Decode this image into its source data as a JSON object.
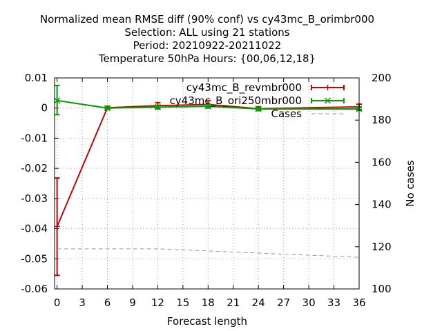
{
  "chart_data": {
    "type": "line",
    "title_lines": [
      "Normalized mean RMSE diff (90% conf) vs cy43mc_B_orimbr000",
      "Selection: ALL using    21 stations",
      "Period: 20210922-20211022",
      "Temperature 50hPa   Hours: {00,06,12,18}"
    ],
    "xlabel": "Forecast length",
    "ylabel": "",
    "y2label": "No cases",
    "x_ticks": [
      "0",
      "3",
      "6",
      "9",
      "12",
      "15",
      "18",
      "21",
      "24",
      "27",
      "30",
      "33",
      "36"
    ],
    "y_ticks": [
      "0.01",
      "0",
      "-0.01",
      "-0.02",
      "-0.03",
      "-0.04",
      "-0.05",
      "-0.06"
    ],
    "y2_ticks": [
      "200",
      "180",
      "160",
      "140",
      "120",
      "100"
    ],
    "xlim": [
      -0.3,
      36
    ],
    "ylim": [
      -0.06,
      0.01
    ],
    "y2lim": [
      100,
      200
    ],
    "grid": true,
    "legend_position": "top-right",
    "series": [
      {
        "name": "cy43mc_B_revmbr000",
        "color": "#cc0000",
        "marker": "plus",
        "x": [
          0,
          6,
          12,
          18,
          24,
          36
        ],
        "y": [
          -0.0393,
          0.0001,
          0.0008,
          0.0012,
          -0.0002,
          0.0004
        ],
        "err_low": [
          -0.0555,
          -0.0003,
          -0.0002,
          0.0001,
          -0.0008,
          -0.0005
        ],
        "err_high": [
          -0.0232,
          0.0005,
          0.0018,
          0.0024,
          0.0004,
          0.0013
        ]
      },
      {
        "name": "cy43mc_B_ori250mbr000",
        "color": "#00a000",
        "marker": "x",
        "x": [
          0,
          6,
          12,
          18,
          24,
          36
        ],
        "y": [
          0.0025,
          0.0,
          0.0003,
          0.0006,
          -0.0003,
          -0.0003
        ],
        "err_low": [
          -0.0022,
          -0.0004,
          -0.0003,
          0.0,
          -0.0008,
          -0.0008
        ],
        "err_high": [
          0.0075,
          0.0004,
          0.0009,
          0.0012,
          0.0002,
          0.0002
        ]
      },
      {
        "name": "Cases",
        "color": "#999999",
        "axis": "right",
        "dashed": true,
        "x": [
          0,
          6,
          12,
          18,
          24,
          36
        ],
        "y": [
          119,
          119,
          119,
          118,
          117,
          115
        ]
      }
    ]
  }
}
